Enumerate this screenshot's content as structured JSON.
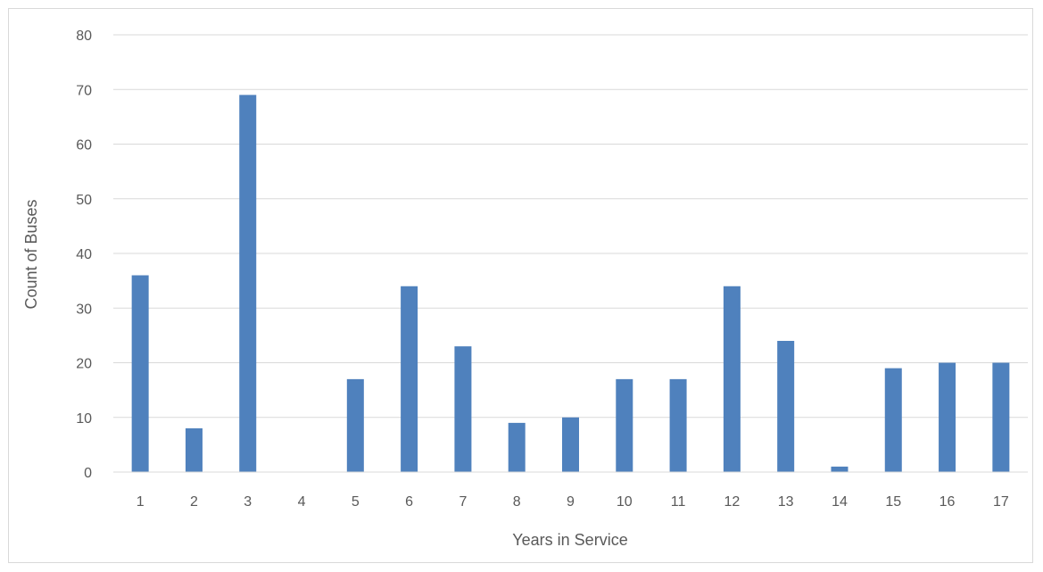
{
  "chart_data": {
    "type": "bar",
    "title": "",
    "xlabel": "Years in Service",
    "ylabel": "Count of Buses",
    "categories": [
      "1",
      "2",
      "3",
      "4",
      "5",
      "6",
      "7",
      "8",
      "9",
      "10",
      "11",
      "12",
      "13",
      "14",
      "15",
      "16",
      "17"
    ],
    "values": [
      36,
      8,
      69,
      0,
      17,
      34,
      23,
      9,
      10,
      17,
      17,
      34,
      24,
      1,
      19,
      20,
      20
    ],
    "ylim": [
      0,
      80
    ],
    "yticks": [
      0,
      10,
      20,
      30,
      40,
      50,
      60,
      70,
      80
    ],
    "grid": true,
    "legend": "none",
    "bar_color": "#4f81bd",
    "grid_color": "#d9d9d9"
  }
}
